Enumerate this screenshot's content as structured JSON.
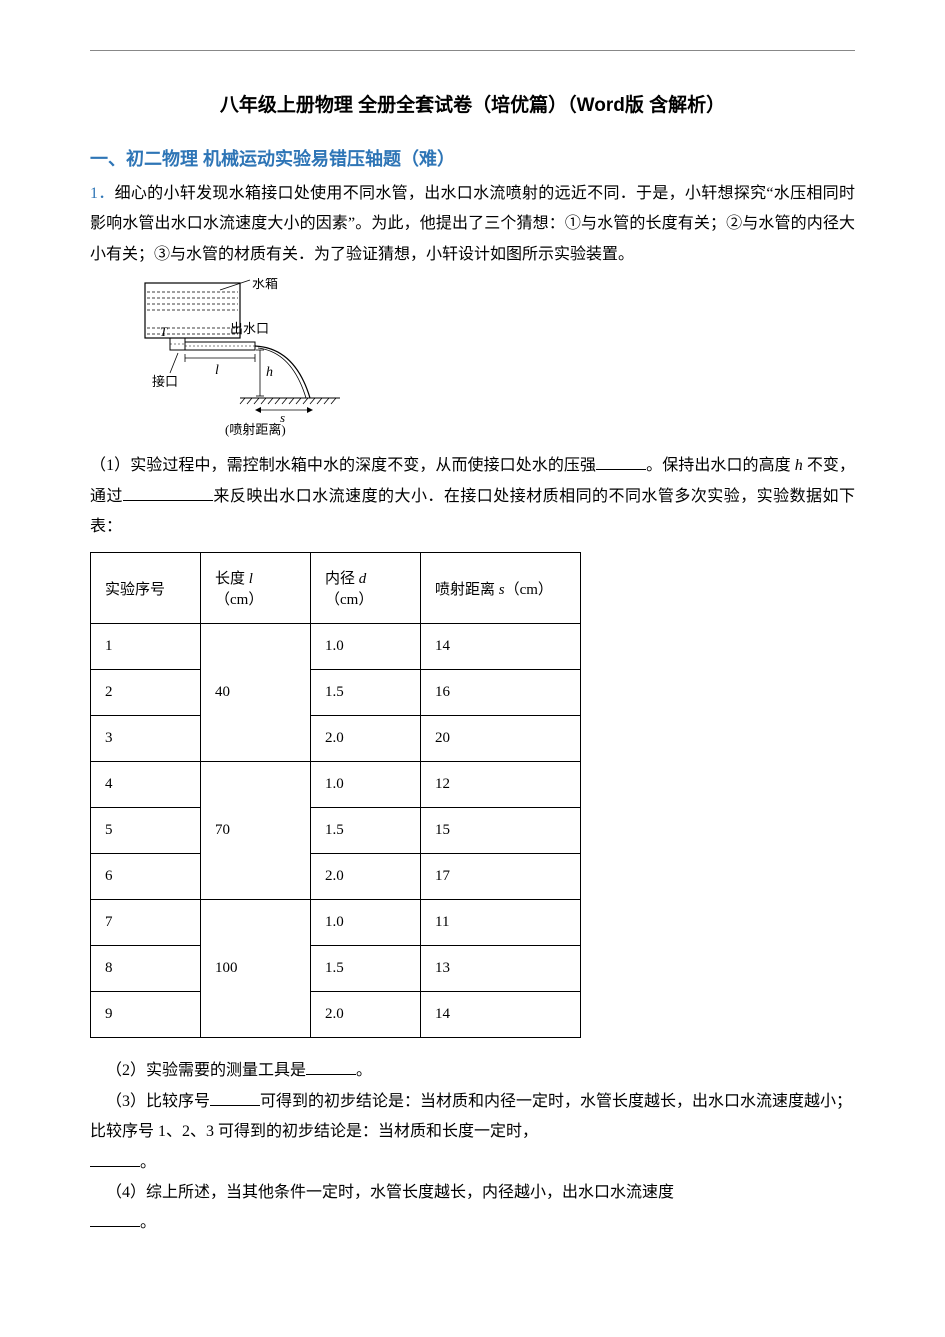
{
  "title": "八年级上册物理 全册全套试卷（培优篇）（Word版 含解析）",
  "section": "一、初二物理 机械运动实验易错压轴题（难）",
  "q1": {
    "num": "1．",
    "p1a": "细心的小轩发现水箱接口处使用不同水管，出水口水流喷射的远近不同．于是，小轩想探究“水压相同时影响水管出水口水流速度大小的因素”。为此，他提出了三个猜想：",
    "g1": "①",
    "p1b": "与水管的长度有关；",
    "g2": "②",
    "p1c": "与水管的内径大小有关；",
    "g3": "③",
    "p1d": "与水管的材质有关．为了验证猜想，小轩设计如图所示实验装置。",
    "p2a": "（1）实验过程中，需控制水箱中水的深度不变，从而使接口处水的压强",
    "p2b": "。保持出水口的高度 ",
    "hvar": "h",
    "p2c": " 不变，通过",
    "p2d": "来反映出水口水流速度的大小．在接口处接材质相同的不同水管多次实验，实验数据如下表：",
    "p3": "（2）实验需要的测量工具是",
    "p3end": "。",
    "p4a": "（3）比较序号",
    "p4b": "可得到的初步结论是：当材质和内径一定时，水管长度越长，出水口水流速度越小；比较序号 1、2、3 可得到的初步结论是：当材质和长度一定时，",
    "p4end": "。",
    "p5a": "（4）综上所述，当其他条件一定时，水管长度越长，内径越小，出水口水流速度",
    "p5end": "。"
  },
  "diagram": {
    "labels": {
      "tank": "水箱",
      "outlet": "出水口",
      "joint": "接口",
      "T": "T",
      "l": "l",
      "h": "h",
      "s": "s",
      "dist": "(喷射距离)"
    },
    "colors": {
      "stroke": "#000000",
      "fill_water": "#ffffff"
    }
  },
  "table": {
    "headers": [
      "实验序号",
      "长度 l\n（cm）",
      "内径 d\n（cm）",
      "喷射距离 s（cm）"
    ],
    "rows": [
      [
        "1",
        "40",
        "1.0",
        "14"
      ],
      [
        "2",
        "",
        "1.5",
        "16"
      ],
      [
        "3",
        "",
        "2.0",
        "20"
      ],
      [
        "4",
        "70",
        "1.0",
        "12"
      ],
      [
        "5",
        "",
        "1.5",
        "15"
      ],
      [
        "6",
        "",
        "2.0",
        "17"
      ],
      [
        "7",
        "100",
        "1.0",
        "11"
      ],
      [
        "8",
        "",
        "1.5",
        "13"
      ],
      [
        "9",
        "",
        "2.0",
        "14"
      ]
    ],
    "merges": [
      {
        "col": 1,
        "startRow": 0,
        "span": 3
      },
      {
        "col": 1,
        "startRow": 3,
        "span": 3
      },
      {
        "col": 1,
        "startRow": 6,
        "span": 3
      }
    ]
  }
}
